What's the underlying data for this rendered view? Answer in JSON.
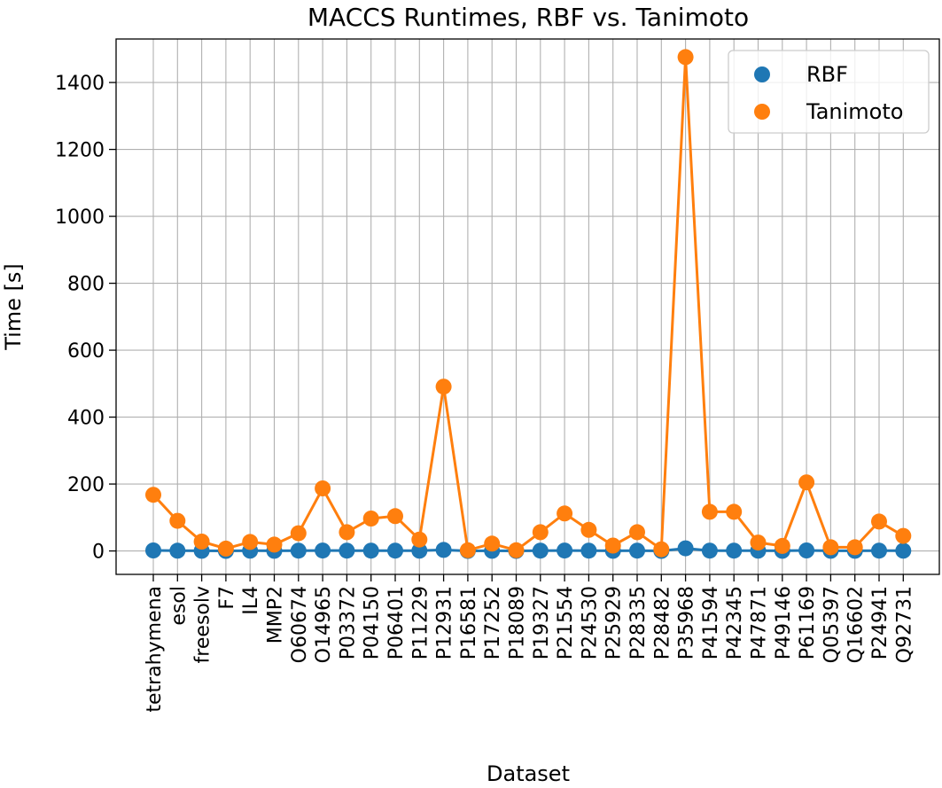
{
  "chart_data": {
    "type": "line",
    "title": "MACCS Runtimes, RBF vs. Tanimoto",
    "xlabel": "Dataset",
    "ylabel": "Time [s]",
    "ylim": [
      -70,
      1530
    ],
    "yticks": [
      0,
      200,
      400,
      600,
      800,
      1000,
      1200,
      1400
    ],
    "grid": true,
    "legend_position": "top-right",
    "categories": [
      "tetrahymena",
      "esol",
      "freesolv",
      "F7",
      "IL4",
      "MMP2",
      "O60674",
      "O14965",
      "P03372",
      "P04150",
      "P06401",
      "P11229",
      "P12931",
      "P16581",
      "P17252",
      "P18089",
      "P19327",
      "P21554",
      "P24530",
      "P25929",
      "P28335",
      "P28482",
      "P35968",
      "P41594",
      "P42345",
      "P47871",
      "P49146",
      "P61169",
      "Q05397",
      "Q16602",
      "P24941",
      "Q92731"
    ],
    "series": [
      {
        "name": "RBF",
        "color": "#1f77b4",
        "values": [
          1.5,
          0.8,
          0.5,
          0.3,
          0.6,
          0.5,
          0.9,
          1.2,
          1.0,
          1.0,
          1.1,
          0.8,
          3.0,
          0.2,
          0.5,
          0.2,
          0.9,
          1.3,
          1.0,
          0.5,
          0.9,
          0.3,
          8.0,
          1.0,
          1.0,
          0.7,
          0.5,
          1.5,
          0.5,
          0.5,
          0.9,
          0.7
        ]
      },
      {
        "name": "Tanimoto",
        "color": "#ff7f0e",
        "values": [
          168,
          90,
          28,
          7,
          27,
          19,
          53,
          187,
          56,
          97,
          104,
          34,
          491,
          2,
          22,
          2,
          56,
          112,
          63,
          16,
          56,
          5,
          1476,
          117,
          117,
          25,
          15,
          205,
          11,
          11,
          88,
          45
        ]
      }
    ]
  }
}
